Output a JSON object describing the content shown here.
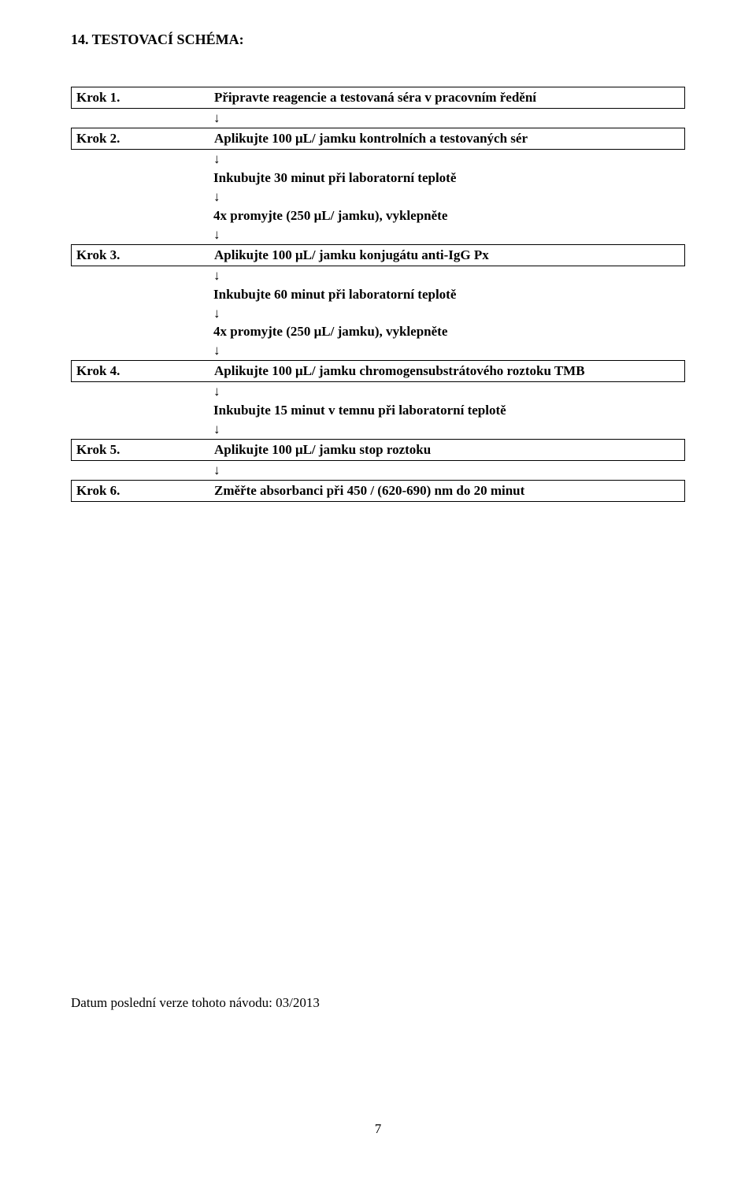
{
  "section_title": "14.  TESTOVACÍ SCHÉMA:",
  "arrow_glyph": "↓",
  "steps": {
    "s1": {
      "label": "Krok 1.",
      "text": "Připravte reagencie a testovaná séra v pracovním ředění"
    },
    "s2": {
      "label": "Krok 2.",
      "text": "Aplikujte 100 μL/ jamku kontrolních a testovaných sér"
    },
    "s3": {
      "label": "Krok 3.",
      "text": "Aplikujte 100 μL/ jamku konjugátu anti-IgG Px"
    },
    "s4": {
      "label": "Krok 4.",
      "text": "Aplikujte 100 μL/ jamku chromogensubstrátového roztoku TMB"
    },
    "s5": {
      "label": "Krok 5.",
      "text": "Aplikujte 100 μL/ jamku stop roztoku"
    },
    "s6": {
      "label": "Krok 6.",
      "text": "Změřte absorbanci při 450 / (620-690) nm do 20 minut"
    }
  },
  "incubate": {
    "i30": "Inkubujte 30 minut při laboratorní teplotě",
    "i60": "Inkubujte 60 minut při laboratorní teplotě",
    "i15": "Inkubujte 15 minut v temnu při laboratorní teplotě"
  },
  "wash": "4x promyjte (250 μL/ jamku), vyklepněte",
  "footer": "Datum poslední verze tohoto návodu: 03/2013",
  "page_number": "7"
}
